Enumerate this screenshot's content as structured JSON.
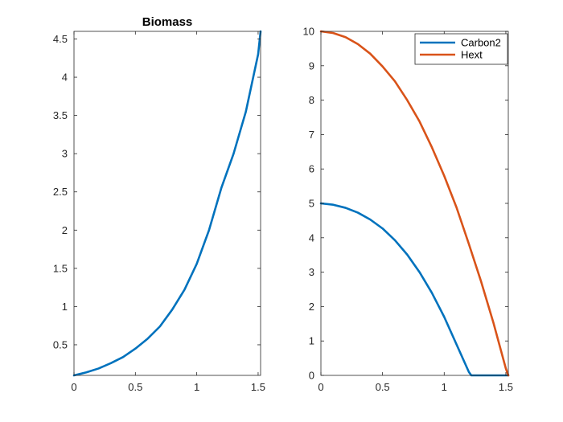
{
  "chart_data": [
    {
      "type": "line",
      "title": "Biomass",
      "xlabel": "",
      "ylabel": "",
      "xlim": [
        0,
        1.52
      ],
      "ylim": [
        0.1,
        4.6
      ],
      "xticks": [
        0,
        0.5,
        1,
        1.5
      ],
      "xtick_labels": [
        "0",
        "0.5",
        "1",
        "1.5"
      ],
      "yticks": [
        0.5,
        1,
        1.5,
        2,
        2.5,
        3,
        3.5,
        4,
        4.5
      ],
      "ytick_labels": [
        "0.5",
        "1",
        "1.5",
        "2",
        "2.5",
        "3",
        "3.5",
        "4",
        "4.5"
      ],
      "grid": false,
      "series": [
        {
          "color": "#0072BD",
          "x": [
            0,
            0.1,
            0.2,
            0.3,
            0.4,
            0.5,
            0.6,
            0.7,
            0.8,
            0.9,
            1.0,
            1.1,
            1.2,
            1.3,
            1.4,
            1.5,
            1.52
          ],
          "y": [
            0.1,
            0.14,
            0.19,
            0.26,
            0.34,
            0.45,
            0.58,
            0.74,
            0.96,
            1.22,
            1.56,
            2.0,
            2.55,
            3.0,
            3.55,
            4.3,
            4.6
          ]
        }
      ]
    },
    {
      "type": "line",
      "title": "",
      "xlabel": "",
      "ylabel": "",
      "xlim": [
        0,
        1.52
      ],
      "ylim": [
        0,
        10
      ],
      "xticks": [
        0,
        0.5,
        1,
        1.5
      ],
      "xtick_labels": [
        "0",
        "0.5",
        "1",
        "1.5"
      ],
      "yticks": [
        0,
        1,
        2,
        3,
        4,
        5,
        6,
        7,
        8,
        9,
        10
      ],
      "ytick_labels": [
        "0",
        "1",
        "2",
        "3",
        "4",
        "5",
        "6",
        "7",
        "8",
        "9",
        "10"
      ],
      "grid": false,
      "legend_placement": "top-right",
      "series": [
        {
          "name": "Carbon2",
          "color": "#0072BD",
          "x": [
            0,
            0.1,
            0.2,
            0.3,
            0.4,
            0.5,
            0.6,
            0.7,
            0.8,
            0.9,
            1.0,
            1.1,
            1.2,
            1.22,
            1.52
          ],
          "y": [
            5.0,
            4.96,
            4.87,
            4.73,
            4.53,
            4.27,
            3.93,
            3.51,
            3.0,
            2.4,
            1.7,
            0.9,
            0.1,
            0.0,
            0.0
          ]
        },
        {
          "name": "Hext",
          "color": "#D95319",
          "x": [
            0,
            0.1,
            0.2,
            0.3,
            0.4,
            0.5,
            0.6,
            0.7,
            0.8,
            0.9,
            1.0,
            1.1,
            1.2,
            1.3,
            1.4,
            1.5,
            1.52
          ],
          "y": [
            10.0,
            9.95,
            9.83,
            9.63,
            9.35,
            8.98,
            8.55,
            8.0,
            7.38,
            6.63,
            5.8,
            4.88,
            3.82,
            2.72,
            1.52,
            0.2,
            0.0
          ]
        }
      ]
    }
  ]
}
